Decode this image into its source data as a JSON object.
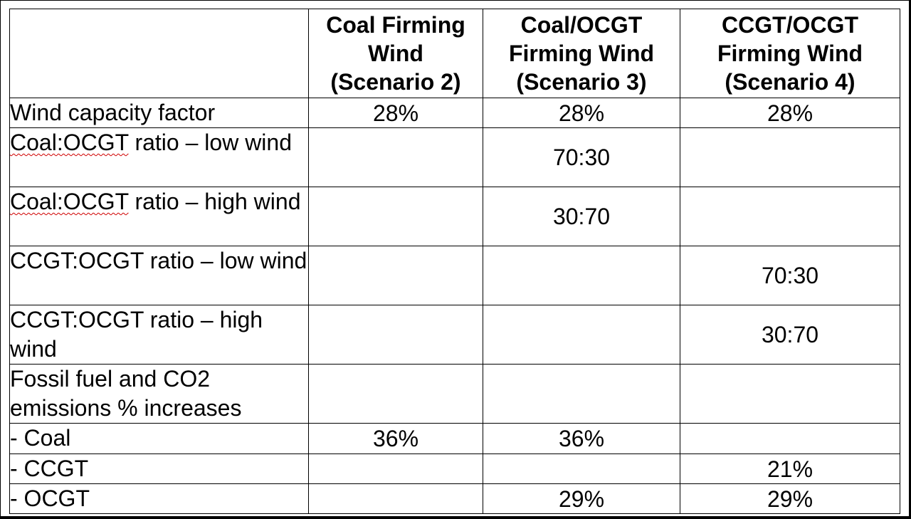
{
  "table": {
    "headers": [
      "",
      [
        "Coal Firming",
        "Wind",
        "(Scenario 2)"
      ],
      [
        "Coal/OCGT",
        "Firming Wind",
        "(Scenario 3)"
      ],
      [
        "CCGT/OCGT",
        "Firming Wind",
        "(Scenario 4)"
      ]
    ],
    "rows": [
      {
        "label": "Wind capacity factor",
        "values": [
          "28%",
          "28%",
          "28%"
        ]
      },
      {
        "label_prefix": "Coal:OCGT",
        "label_suffix": " ratio – low wind",
        "values": [
          "",
          "70:30",
          ""
        ]
      },
      {
        "label_prefix": "Coal:OCGT",
        "label_suffix": " ratio – high wind",
        "values": [
          "",
          "30:70",
          ""
        ]
      },
      {
        "label": "CCGT:OCGT ratio – low wind",
        "values": [
          "",
          "",
          "70:30"
        ]
      },
      {
        "label": "CCGT:OCGT ratio – high wind",
        "values": [
          "",
          "",
          "30:70"
        ]
      },
      {
        "label": "Fossil fuel and CO2 emissions % increases",
        "values": [
          "",
          "",
          ""
        ]
      },
      {
        "label": "- Coal",
        "values": [
          "36%",
          "36%",
          ""
        ]
      },
      {
        "label": "- CCGT",
        "values": [
          "",
          "",
          "21%"
        ]
      },
      {
        "label": "- OCGT",
        "values": [
          "",
          "29%",
          "29%"
        ]
      }
    ]
  }
}
